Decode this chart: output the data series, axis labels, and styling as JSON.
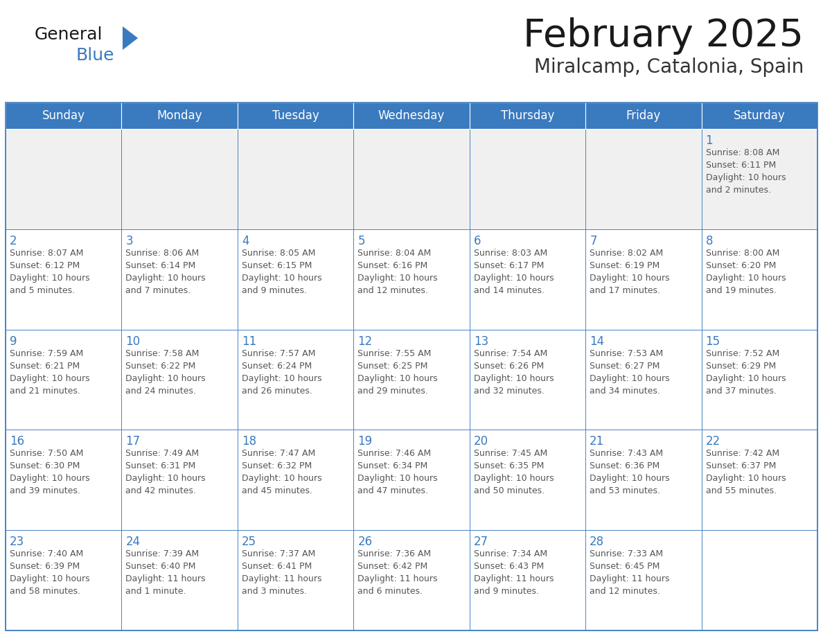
{
  "title": "February 2025",
  "subtitle": "Miralcamp, Catalonia, Spain",
  "header_color": "#3a7abf",
  "header_text_color": "#ffffff",
  "cell_bg_color": "#ffffff",
  "first_row_bg": "#f0f0f0",
  "border_color": "#3a7abf",
  "days_of_week": [
    "Sunday",
    "Monday",
    "Tuesday",
    "Wednesday",
    "Thursday",
    "Friday",
    "Saturday"
  ],
  "title_color": "#1a1a1a",
  "subtitle_color": "#333333",
  "day_num_color": "#3a7abf",
  "cell_text_color": "#555555",
  "logo_general_color": "#1a1a1a",
  "logo_blue_color": "#3a7abf",
  "calendar_data": [
    [
      {
        "day": null,
        "info": null
      },
      {
        "day": null,
        "info": null
      },
      {
        "day": null,
        "info": null
      },
      {
        "day": null,
        "info": null
      },
      {
        "day": null,
        "info": null
      },
      {
        "day": null,
        "info": null
      },
      {
        "day": 1,
        "info": "Sunrise: 8:08 AM\nSunset: 6:11 PM\nDaylight: 10 hours\nand 2 minutes."
      }
    ],
    [
      {
        "day": 2,
        "info": "Sunrise: 8:07 AM\nSunset: 6:12 PM\nDaylight: 10 hours\nand 5 minutes."
      },
      {
        "day": 3,
        "info": "Sunrise: 8:06 AM\nSunset: 6:14 PM\nDaylight: 10 hours\nand 7 minutes."
      },
      {
        "day": 4,
        "info": "Sunrise: 8:05 AM\nSunset: 6:15 PM\nDaylight: 10 hours\nand 9 minutes."
      },
      {
        "day": 5,
        "info": "Sunrise: 8:04 AM\nSunset: 6:16 PM\nDaylight: 10 hours\nand 12 minutes."
      },
      {
        "day": 6,
        "info": "Sunrise: 8:03 AM\nSunset: 6:17 PM\nDaylight: 10 hours\nand 14 minutes."
      },
      {
        "day": 7,
        "info": "Sunrise: 8:02 AM\nSunset: 6:19 PM\nDaylight: 10 hours\nand 17 minutes."
      },
      {
        "day": 8,
        "info": "Sunrise: 8:00 AM\nSunset: 6:20 PM\nDaylight: 10 hours\nand 19 minutes."
      }
    ],
    [
      {
        "day": 9,
        "info": "Sunrise: 7:59 AM\nSunset: 6:21 PM\nDaylight: 10 hours\nand 21 minutes."
      },
      {
        "day": 10,
        "info": "Sunrise: 7:58 AM\nSunset: 6:22 PM\nDaylight: 10 hours\nand 24 minutes."
      },
      {
        "day": 11,
        "info": "Sunrise: 7:57 AM\nSunset: 6:24 PM\nDaylight: 10 hours\nand 26 minutes."
      },
      {
        "day": 12,
        "info": "Sunrise: 7:55 AM\nSunset: 6:25 PM\nDaylight: 10 hours\nand 29 minutes."
      },
      {
        "day": 13,
        "info": "Sunrise: 7:54 AM\nSunset: 6:26 PM\nDaylight: 10 hours\nand 32 minutes."
      },
      {
        "day": 14,
        "info": "Sunrise: 7:53 AM\nSunset: 6:27 PM\nDaylight: 10 hours\nand 34 minutes."
      },
      {
        "day": 15,
        "info": "Sunrise: 7:52 AM\nSunset: 6:29 PM\nDaylight: 10 hours\nand 37 minutes."
      }
    ],
    [
      {
        "day": 16,
        "info": "Sunrise: 7:50 AM\nSunset: 6:30 PM\nDaylight: 10 hours\nand 39 minutes."
      },
      {
        "day": 17,
        "info": "Sunrise: 7:49 AM\nSunset: 6:31 PM\nDaylight: 10 hours\nand 42 minutes."
      },
      {
        "day": 18,
        "info": "Sunrise: 7:47 AM\nSunset: 6:32 PM\nDaylight: 10 hours\nand 45 minutes."
      },
      {
        "day": 19,
        "info": "Sunrise: 7:46 AM\nSunset: 6:34 PM\nDaylight: 10 hours\nand 47 minutes."
      },
      {
        "day": 20,
        "info": "Sunrise: 7:45 AM\nSunset: 6:35 PM\nDaylight: 10 hours\nand 50 minutes."
      },
      {
        "day": 21,
        "info": "Sunrise: 7:43 AM\nSunset: 6:36 PM\nDaylight: 10 hours\nand 53 minutes."
      },
      {
        "day": 22,
        "info": "Sunrise: 7:42 AM\nSunset: 6:37 PM\nDaylight: 10 hours\nand 55 minutes."
      }
    ],
    [
      {
        "day": 23,
        "info": "Sunrise: 7:40 AM\nSunset: 6:39 PM\nDaylight: 10 hours\nand 58 minutes."
      },
      {
        "day": 24,
        "info": "Sunrise: 7:39 AM\nSunset: 6:40 PM\nDaylight: 11 hours\nand 1 minute."
      },
      {
        "day": 25,
        "info": "Sunrise: 7:37 AM\nSunset: 6:41 PM\nDaylight: 11 hours\nand 3 minutes."
      },
      {
        "day": 26,
        "info": "Sunrise: 7:36 AM\nSunset: 6:42 PM\nDaylight: 11 hours\nand 6 minutes."
      },
      {
        "day": 27,
        "info": "Sunrise: 7:34 AM\nSunset: 6:43 PM\nDaylight: 11 hours\nand 9 minutes."
      },
      {
        "day": 28,
        "info": "Sunrise: 7:33 AM\nSunset: 6:45 PM\nDaylight: 11 hours\nand 12 minutes."
      },
      {
        "day": null,
        "info": null
      }
    ]
  ]
}
